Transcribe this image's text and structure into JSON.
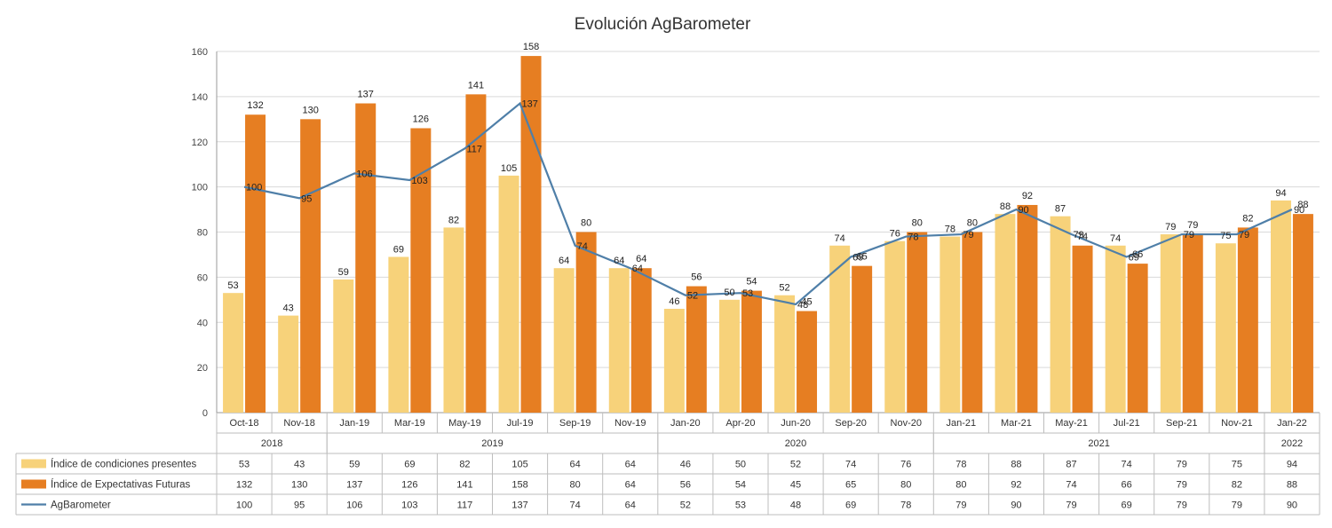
{
  "chart_data": {
    "type": "bar",
    "title": "Evolución AgBarometer",
    "categories": [
      "Oct-18",
      "Nov-18",
      "Jan-19",
      "Mar-19",
      "May-19",
      "Jul-19",
      "Sep-19",
      "Nov-19",
      "Jan-20",
      "Apr-20",
      "Jun-20",
      "Sep-20",
      "Nov-20",
      "Jan-21",
      "Mar-21",
      "May-21",
      "Jul-21",
      "Sep-21",
      "Nov-21",
      "Jan-22"
    ],
    "year_groups": [
      {
        "label": "2018",
        "count": 2
      },
      {
        "label": "2019",
        "count": 6
      },
      {
        "label": "2020",
        "count": 5
      },
      {
        "label": "2021",
        "count": 6
      },
      {
        "label": "2022",
        "count": 1
      }
    ],
    "ylim": [
      0,
      160
    ],
    "yticks": [
      0,
      20,
      40,
      60,
      80,
      100,
      120,
      140,
      160
    ],
    "grid": true,
    "legend_placement": "data-table-left",
    "series": [
      {
        "name": "Índice de condiciones presentes",
        "kind": "bar",
        "color": "#F7D27A",
        "values": [
          53,
          43,
          59,
          69,
          82,
          105,
          64,
          64,
          46,
          50,
          52,
          74,
          76,
          78,
          88,
          87,
          74,
          79,
          75,
          94
        ]
      },
      {
        "name": "Índice de Expectativas Futuras",
        "kind": "bar",
        "color": "#E67E22",
        "values": [
          132,
          130,
          137,
          126,
          141,
          158,
          80,
          64,
          56,
          54,
          45,
          65,
          80,
          80,
          92,
          74,
          66,
          79,
          82,
          88
        ]
      },
      {
        "name": "AgBarometer",
        "kind": "line",
        "color": "#4F7FA8",
        "values": [
          100,
          95,
          106,
          103,
          117,
          137,
          74,
          64,
          52,
          53,
          48,
          69,
          78,
          79,
          90,
          79,
          69,
          79,
          79,
          90
        ]
      }
    ]
  }
}
